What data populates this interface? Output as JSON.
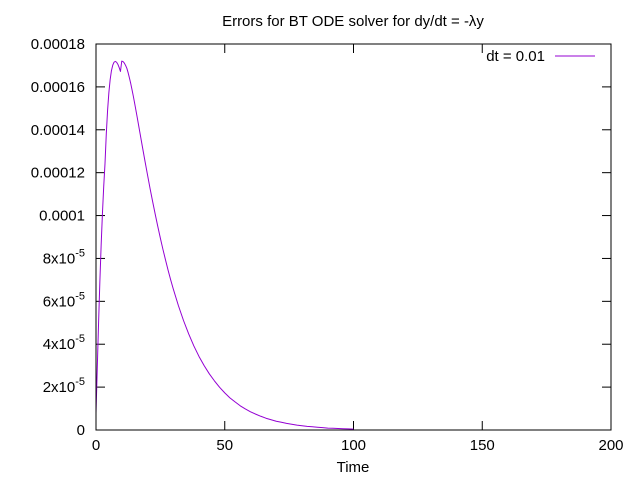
{
  "chart_data": {
    "type": "line",
    "title": "Errors for BT ODE solver for dy/dt = -λy",
    "xlabel": "Time",
    "ylabel": "",
    "xlim": [
      0,
      200
    ],
    "ylim": [
      0,
      0.00018
    ],
    "grid": false,
    "legend_position": "top-right",
    "x_ticks": [
      {
        "value": 0,
        "label": "0"
      },
      {
        "value": 50,
        "label": "50"
      },
      {
        "value": 100,
        "label": "100"
      },
      {
        "value": 150,
        "label": "150"
      },
      {
        "value": 200,
        "label": "200"
      }
    ],
    "y_ticks": [
      {
        "value": 0,
        "base": "0",
        "exp": ""
      },
      {
        "value": 2e-05,
        "base": "2x10",
        "exp": "-5"
      },
      {
        "value": 4e-05,
        "base": "4x10",
        "exp": "-5"
      },
      {
        "value": 6e-05,
        "base": "6x10",
        "exp": "-5"
      },
      {
        "value": 8e-05,
        "base": "8x10",
        "exp": "-5"
      },
      {
        "value": 0.0001,
        "base": "0.0001",
        "exp": ""
      },
      {
        "value": 0.00012,
        "base": "0.00012",
        "exp": ""
      },
      {
        "value": 0.00014,
        "base": "0.00014",
        "exp": ""
      },
      {
        "value": 0.00016,
        "base": "0.00016",
        "exp": ""
      },
      {
        "value": 0.00018,
        "base": "0.00018",
        "exp": ""
      }
    ],
    "series": [
      {
        "name": "dt = 0.01",
        "color": "#9400d3",
        "x": [
          0,
          0.5,
          1,
          1.5,
          2,
          2.5,
          3,
          3.5,
          4,
          4.5,
          5,
          5.5,
          6,
          6.5,
          7,
          7.5,
          8,
          8.5,
          9,
          9.5,
          10,
          10.5,
          11,
          11.5,
          12,
          12.5,
          13,
          13.5,
          14,
          14.5,
          15,
          16,
          17,
          18,
          19,
          20,
          21,
          22,
          23,
          24,
          25,
          26,
          27,
          28,
          29,
          30,
          32,
          34,
          36,
          38,
          40,
          42,
          44,
          46,
          48,
          50,
          52,
          54,
          56,
          58,
          60,
          62,
          64,
          66,
          68,
          70,
          72,
          74,
          76,
          78,
          80,
          82,
          84,
          86,
          88,
          90,
          92,
          94,
          96,
          98,
          100
        ],
        "y": [
          7.9e-06,
          2.92e-05,
          5.01e-05,
          6.92e-05,
          8.62e-05,
          0.000101,
          0.0001136,
          0.0001243,
          0.0001382,
          0.0001491,
          0.0001574,
          0.0001634,
          0.0001676,
          0.0001701,
          0.0001715,
          0.0001719,
          0.0001715,
          0.0001705,
          0.000169,
          0.0001672,
          0.000172,
          0.0001718,
          0.0001711,
          0.00017,
          0.0001686,
          0.0001665,
          0.0001641,
          0.0001615,
          0.0001586,
          0.0001556,
          0.0001524,
          0.0001458,
          0.000139,
          0.0001322,
          0.0001255,
          0.000119,
          0.0001126,
          0.0001065,
          0.0001006,
          9.49e-05,
          8.94e-05,
          8.42e-05,
          7.93e-05,
          7.45e-05,
          7e-05,
          6.58e-05,
          5.8e-05,
          5.1e-05,
          4.48e-05,
          3.92e-05,
          3.43e-05,
          3e-05,
          2.62e-05,
          2.29e-05,
          1.99e-05,
          1.73e-05,
          1.5e-05,
          1.31e-05,
          1.13e-05,
          9.8e-06,
          8.5e-06,
          7.4e-06,
          6.4e-06,
          5.5e-06,
          4.8e-06,
          4.1e-06,
          3.6e-06,
          3.1e-06,
          2.7e-06,
          2.3e-06,
          2e-06,
          1.7e-06,
          1.5e-06,
          1.3e-06,
          1.1e-06,
          9e-07,
          8e-07,
          7e-07,
          6e-07,
          5e-07,
          4e-07
        ]
      }
    ]
  }
}
